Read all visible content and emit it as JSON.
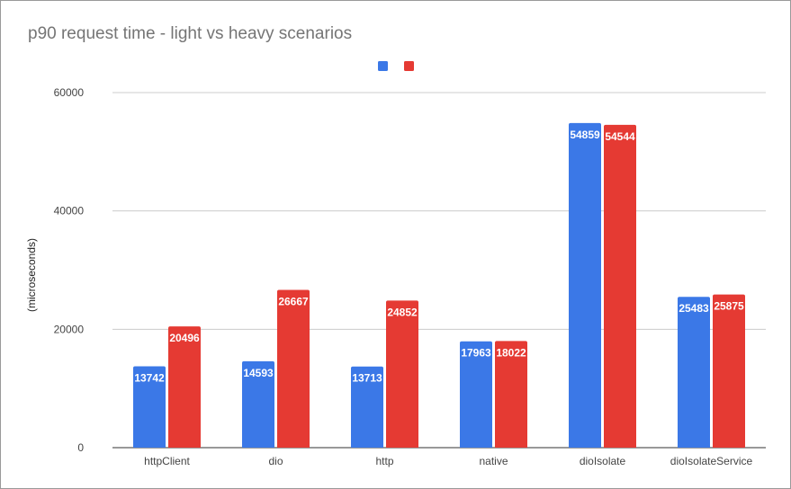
{
  "chart_data": {
    "type": "bar",
    "title": "p90 request time - light vs heavy scenarios",
    "xlabel": "",
    "ylabel": "(microseconds)",
    "ylim": [
      0,
      60000
    ],
    "yticks": [
      0,
      20000,
      40000,
      60000
    ],
    "grid": true,
    "legend_position": "top",
    "categories": [
      "httpClient",
      "dio",
      "http",
      "native",
      "dioIsolate",
      "dioIsolateService"
    ],
    "series": [
      {
        "values": [
          13742,
          14593,
          13713,
          17963,
          54859,
          25483
        ],
        "color": "#3b78e7"
      },
      {
        "values": [
          20496,
          26667,
          24852,
          18022,
          54544,
          25875
        ],
        "color": "#e53a33"
      }
    ]
  }
}
